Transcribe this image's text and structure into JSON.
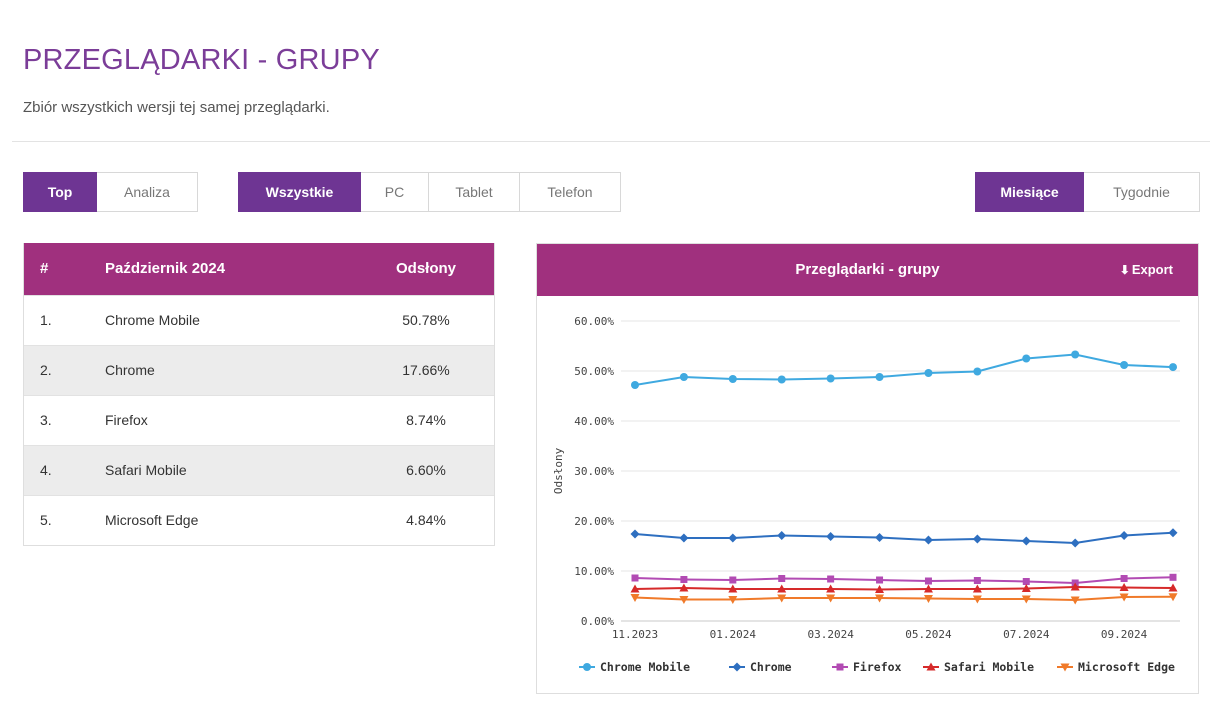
{
  "header": {
    "title": "PRZEGLĄDARKI - GRUPY",
    "subtitle": "Zbiór wszystkich wersji tej samej przeglądarki."
  },
  "view_toggle": {
    "top": "Top",
    "analiza": "Analiza"
  },
  "device_filter": {
    "all": "Wszystkie",
    "pc": "PC",
    "tablet": "Tablet",
    "phone": "Telefon"
  },
  "period_toggle": {
    "months": "Miesiące",
    "weeks": "Tygodnie"
  },
  "table": {
    "headers": {
      "rank": "#",
      "period": "Październik 2024",
      "views": "Odsłony"
    },
    "rows": [
      {
        "rank": "1.",
        "name": "Chrome Mobile",
        "value": "50.78%"
      },
      {
        "rank": "2.",
        "name": "Chrome",
        "value": "17.66%"
      },
      {
        "rank": "3.",
        "name": "Firefox",
        "value": "8.74%"
      },
      {
        "rank": "4.",
        "name": "Safari Mobile",
        "value": "6.60%"
      },
      {
        "rank": "5.",
        "name": "Microsoft Edge",
        "value": "4.84%"
      }
    ]
  },
  "chart_panel": {
    "title": "Przeglądarki - grupy",
    "export_label": "Export"
  },
  "chart_data": {
    "type": "line",
    "title": "Przeglądarki - grupy",
    "xlabel": "",
    "ylabel": "Odsłony",
    "ylim": [
      0,
      60
    ],
    "y_ticks": [
      "0.00%",
      "10.00%",
      "20.00%",
      "30.00%",
      "40.00%",
      "50.00%",
      "60.00%"
    ],
    "x": [
      "11.2023",
      "12.2023",
      "01.2024",
      "02.2024",
      "03.2024",
      "04.2024",
      "05.2024",
      "06.2024",
      "07.2024",
      "08.2024",
      "09.2024",
      "10.2024"
    ],
    "x_tick_labels": [
      "11.2023",
      "01.2024",
      "03.2024",
      "05.2024",
      "07.2024",
      "09.2024"
    ],
    "series": [
      {
        "name": "Chrome Mobile",
        "color": "#3fa9e0",
        "marker": "circle",
        "values": [
          47.2,
          48.8,
          48.4,
          48.3,
          48.5,
          48.8,
          49.6,
          49.9,
          52.5,
          53.3,
          51.2,
          50.78
        ]
      },
      {
        "name": "Chrome",
        "color": "#2e6fc0",
        "marker": "diamond",
        "values": [
          17.4,
          16.6,
          16.6,
          17.1,
          16.9,
          16.7,
          16.2,
          16.4,
          16.0,
          15.6,
          17.1,
          17.66
        ]
      },
      {
        "name": "Firefox",
        "color": "#b24bb3",
        "marker": "square",
        "values": [
          8.6,
          8.3,
          8.2,
          8.5,
          8.4,
          8.2,
          8.0,
          8.1,
          7.9,
          7.6,
          8.5,
          8.74
        ]
      },
      {
        "name": "Safari Mobile",
        "color": "#d62a2a",
        "marker": "triangle-up",
        "values": [
          6.4,
          6.6,
          6.4,
          6.4,
          6.4,
          6.3,
          6.4,
          6.4,
          6.5,
          6.8,
          6.7,
          6.6
        ]
      },
      {
        "name": "Microsoft Edge",
        "color": "#f07a2a",
        "marker": "triangle-down",
        "values": [
          4.7,
          4.3,
          4.3,
          4.6,
          4.6,
          4.6,
          4.5,
          4.4,
          4.4,
          4.2,
          4.8,
          4.84
        ]
      }
    ],
    "grid": true,
    "legend": "bottom"
  }
}
